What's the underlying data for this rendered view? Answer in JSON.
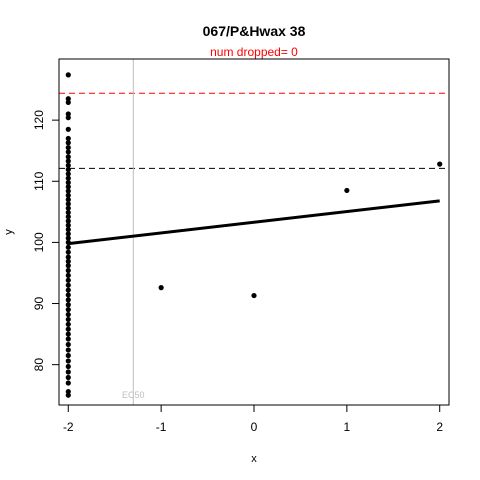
{
  "chart_data": {
    "type": "scatter",
    "title": "067/P&Hwax 38",
    "subtitle": "num dropped= 0",
    "xlabel": "x",
    "ylabel": "y",
    "xlim": [
      -2.1,
      2.1
    ],
    "ylim": [
      73.4,
      130.0
    ],
    "x_ticks": [
      -2,
      -1,
      0,
      1,
      2
    ],
    "x_tick_labels": [
      "-2",
      "-1",
      "0",
      "1",
      "2"
    ],
    "y_ticks": [
      80,
      90,
      100,
      110,
      120
    ],
    "y_tick_labels": [
      "80",
      "90",
      "100",
      "110",
      "120"
    ],
    "grid": false,
    "colors": {
      "points": "#000000",
      "fit_line": "#000000",
      "upper_ref": "#ff0000",
      "lower_ref": "#000000",
      "ec50": "#bebebe",
      "subtitle": "#ff0000"
    },
    "ref_lines": [
      {
        "y": 124.4,
        "color": "#ff0000",
        "style": "dashed"
      },
      {
        "y": 112.1,
        "color": "#000000",
        "style": "dashed"
      }
    ],
    "ec50": {
      "x": -1.3,
      "label": "EC50",
      "color": "#bebebe"
    },
    "fit_line": {
      "x": [
        -2,
        2
      ],
      "y": [
        99.8,
        106.8
      ]
    },
    "points": [
      {
        "x": -2,
        "y": 127.4
      },
      {
        "x": -2,
        "y": 123.5
      },
      {
        "x": -2,
        "y": 122.9
      },
      {
        "x": -2,
        "y": 121.0
      },
      {
        "x": -2,
        "y": 120.4
      },
      {
        "x": -2,
        "y": 118.5
      },
      {
        "x": -2,
        "y": 117.0
      },
      {
        "x": -2,
        "y": 116.3
      },
      {
        "x": -2,
        "y": 115.5
      },
      {
        "x": -2,
        "y": 114.8
      },
      {
        "x": -2,
        "y": 114.0
      },
      {
        "x": -2,
        "y": 113.3
      },
      {
        "x": -2,
        "y": 112.6
      },
      {
        "x": -2,
        "y": 111.9
      },
      {
        "x": -2,
        "y": 111.2
      },
      {
        "x": -2,
        "y": 110.5
      },
      {
        "x": -2,
        "y": 109.8
      },
      {
        "x": -2,
        "y": 109.1
      },
      {
        "x": -2,
        "y": 108.4
      },
      {
        "x": -2,
        "y": 107.7
      },
      {
        "x": -2,
        "y": 107.0
      },
      {
        "x": -2,
        "y": 106.3
      },
      {
        "x": -2,
        "y": 105.6
      },
      {
        "x": -2,
        "y": 104.9
      },
      {
        "x": -2,
        "y": 104.2
      },
      {
        "x": -2,
        "y": 103.5
      },
      {
        "x": -2,
        "y": 102.8
      },
      {
        "x": -2,
        "y": 102.1
      },
      {
        "x": -2,
        "y": 101.4
      },
      {
        "x": -2,
        "y": 100.7
      },
      {
        "x": -2,
        "y": 100.0
      },
      {
        "x": -2,
        "y": 99.2
      },
      {
        "x": -2,
        "y": 98.4
      },
      {
        "x": -2,
        "y": 97.6
      },
      {
        "x": -2,
        "y": 96.9
      },
      {
        "x": -2,
        "y": 96.2
      },
      {
        "x": -2,
        "y": 95.4
      },
      {
        "x": -2,
        "y": 94.6
      },
      {
        "x": -2,
        "y": 93.8
      },
      {
        "x": -2,
        "y": 93.0
      },
      {
        "x": -2,
        "y": 92.2
      },
      {
        "x": -2,
        "y": 91.4
      },
      {
        "x": -2,
        "y": 90.6
      },
      {
        "x": -2,
        "y": 89.8
      },
      {
        "x": -2,
        "y": 89.0
      },
      {
        "x": -2,
        "y": 88.2
      },
      {
        "x": -2,
        "y": 87.4
      },
      {
        "x": -2,
        "y": 86.6
      },
      {
        "x": -2,
        "y": 85.8
      },
      {
        "x": -2,
        "y": 85.0
      },
      {
        "x": -2,
        "y": 84.2
      },
      {
        "x": -2,
        "y": 83.3
      },
      {
        "x": -2,
        "y": 82.4
      },
      {
        "x": -2,
        "y": 81.5
      },
      {
        "x": -2,
        "y": 80.6
      },
      {
        "x": -2,
        "y": 79.7
      },
      {
        "x": -2,
        "y": 78.8
      },
      {
        "x": -2,
        "y": 77.9
      },
      {
        "x": -2,
        "y": 77.0
      },
      {
        "x": -2,
        "y": 75.6
      },
      {
        "x": -2,
        "y": 75.0
      },
      {
        "x": -1,
        "y": 92.6
      },
      {
        "x": 0,
        "y": 91.3
      },
      {
        "x": 1,
        "y": 108.5
      },
      {
        "x": 2,
        "y": 112.8
      }
    ]
  }
}
